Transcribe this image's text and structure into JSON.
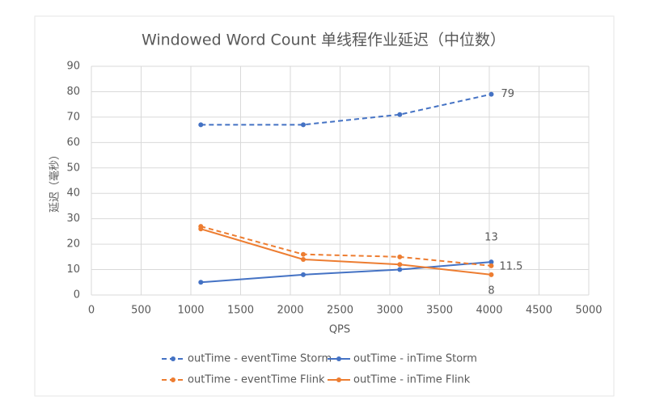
{
  "chart_data": {
    "type": "line",
    "title": "Windowed Word Count 单线程作业延迟（中位数）",
    "x_label": "QPS",
    "y_label": "延迟（毫秒）",
    "x": [
      1100,
      2130,
      3100,
      4020
    ],
    "series": [
      {
        "name": "outTime - eventTime Storm",
        "color": "#4472c4",
        "dashed": true,
        "values": [
          67,
          67,
          71,
          79
        ]
      },
      {
        "name": "outTime - inTime Storm",
        "color": "#4472c4",
        "dashed": false,
        "values": [
          5,
          8,
          10,
          13
        ]
      },
      {
        "name": "outTime - eventTime Flink",
        "color": "#ed7d31",
        "dashed": true,
        "values": [
          27,
          16,
          15,
          11.5
        ]
      },
      {
        "name": "outTime - inTime Flink",
        "color": "#ed7d31",
        "dashed": false,
        "values": [
          26,
          14,
          12,
          8
        ]
      }
    ],
    "xlim": [
      0,
      5000
    ],
    "xticks": [
      0,
      500,
      1000,
      1500,
      2000,
      2500,
      3000,
      3500,
      4000,
      4500,
      5000
    ],
    "ylim": [
      0,
      90
    ],
    "yticks": [
      0,
      10,
      20,
      30,
      40,
      50,
      60,
      70,
      80,
      90
    ],
    "grid": true
  }
}
